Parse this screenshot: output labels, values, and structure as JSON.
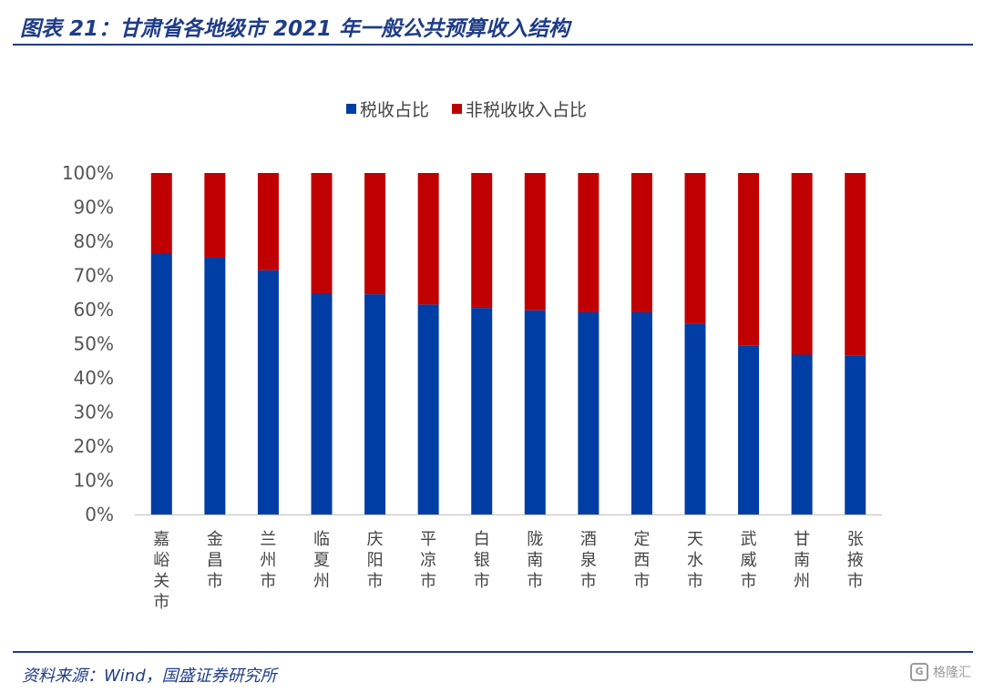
{
  "header": {
    "title": "图表 21：甘肃省各地级市 2021 年一般公共预算收入结构"
  },
  "footer": {
    "source": "资料来源：Wind，国盛证券研究所",
    "watermark": "格隆汇"
  },
  "colors": {
    "tax": "#003DA5",
    "nontax": "#C00000",
    "rule": "#1f3c88"
  },
  "chart_data": {
    "type": "bar",
    "stacked": true,
    "categories": [
      "嘉峪关市",
      "金昌市",
      "兰州市",
      "临夏州",
      "庆阳市",
      "平凉市",
      "白银市",
      "陇南市",
      "酒泉市",
      "定西市",
      "天水市",
      "武威市",
      "甘南州",
      "张掖市"
    ],
    "series": [
      {
        "name": "税收占比",
        "values": [
          76.4,
          75.2,
          71.5,
          64.8,
          64.5,
          61.5,
          60.5,
          59.8,
          59.2,
          59.2,
          55.9,
          49.4,
          46.8,
          46.5
        ]
      },
      {
        "name": "非税收收入占比",
        "values": [
          23.6,
          24.8,
          28.5,
          35.2,
          35.5,
          38.5,
          39.5,
          40.2,
          40.8,
          40.8,
          44.1,
          50.6,
          53.2,
          53.5
        ]
      }
    ],
    "ylim": [
      0,
      100
    ],
    "yticks": [
      "0%",
      "10%",
      "20%",
      "30%",
      "40%",
      "50%",
      "60%",
      "70%",
      "80%",
      "90%",
      "100%"
    ],
    "legend_position": "top-center",
    "grid": false
  }
}
